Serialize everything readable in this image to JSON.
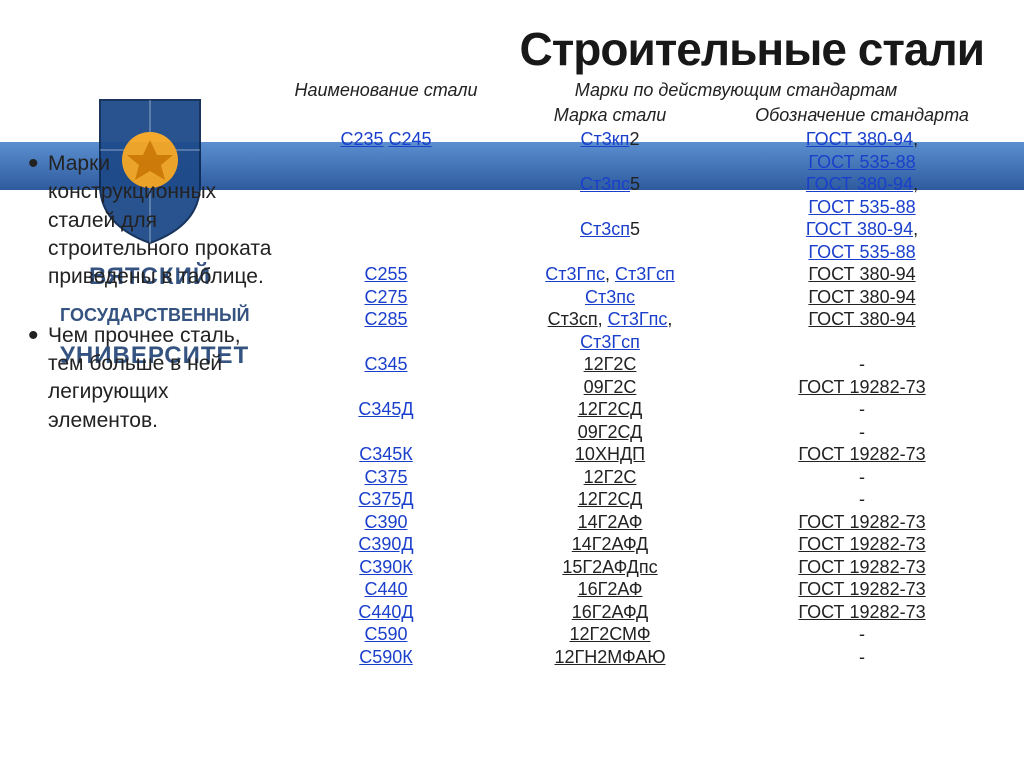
{
  "colors": {
    "link": "#1a3fcc",
    "text": "#222222",
    "bar_top": "#5a8fd0",
    "bar_bottom": "#2f5b9e",
    "background": "#ffffff",
    "univ_text": "#2a4a7a"
  },
  "title": "Строительные стали",
  "bullets": [
    "Марки конструкционных сталей для строительного проката приведены в таблице.",
    "Чем прочнее сталь, тем больше в ней легирующих элементов."
  ],
  "logo": {
    "line1": "ВЯТСКИЙ",
    "line2": "ГОСУДАРСТВЕННЫЙ",
    "line3": "УНИВЕРСИТЕТ"
  },
  "table": {
    "header": {
      "col1": "Наименование стали",
      "col2_group": "Марки по действующим стандартам",
      "col2a": "Марка стали",
      "col2b": "Обозначение стандарта"
    },
    "rows": [
      {
        "name_links": [
          "С235",
          "С245"
        ],
        "grade_html": "<span class='u'>Ст3кп</span>2",
        "std_html": "<span class='u'>ГОСТ 380-94</span>,<br><span class='u'>ГОСТ 535-88</span>"
      },
      {
        "name_links": [],
        "grade_html": "<span class='u'>Ст3пс</span>5",
        "std_html": "<span class='u'>ГОСТ 380-94</span>,<br><span class='u'>ГОСТ 535-88</span>"
      },
      {
        "name_links": [],
        "grade_html": "<span class='u'>Ст3сп</span>5",
        "std_html": "<span class='u'>ГОСТ 380-94</span>,<br><span class='u'>ГОСТ 535-88</span>"
      },
      {
        "name_links": [
          "С255"
        ],
        "grade_html": "<span class='u'>Ст3Гпс</span>, <span class='u'>Ст3Гсп</span>",
        "std_html": "<span class='plain-u'>ГОСТ 380-94</span>"
      },
      {
        "name_links": [
          "С275"
        ],
        "grade_html": "<span class='u'>Ст3пс</span>",
        "std_html": "<span class='plain-u'>ГОСТ 380-94</span>"
      },
      {
        "name_links": [
          "С285"
        ],
        "grade_html": "<span class='plain-u'>Ст3сп</span>, <span class='u'>Ст3Гпс</span>,<br><span class='u'>Ст3Гсп</span>",
        "std_html": "<span class='plain-u'>ГОСТ 380-94</span>"
      },
      {
        "name_links": [
          "С345"
        ],
        "grade_html": "<span class='plain-u'>12Г2С</span><br><span class='plain-u'>09Г2С</span>",
        "std_html": "-<br><span class='plain-u'>ГОСТ 19282-73</span>"
      },
      {
        "name_links": [
          "С345Д"
        ],
        "grade_html": "<span class='plain-u'>12Г2СД</span><br><span class='plain-u'>09Г2СД</span>",
        "std_html": "-<br>-"
      },
      {
        "name_links": [
          "С345К"
        ],
        "grade_html": "<span class='plain-u'>10ХНДП</span>",
        "std_html": "<span class='plain-u'>ГОСТ 19282-73</span>"
      },
      {
        "name_links": [
          "С375"
        ],
        "grade_html": "<span class='plain-u'>12Г2С</span>",
        "std_html": "-"
      },
      {
        "name_links": [
          "С375Д"
        ],
        "grade_html": "<span class='plain-u'>12Г2СД</span>",
        "std_html": "-"
      },
      {
        "name_links": [
          "С390"
        ],
        "grade_html": "<span class='plain-u'>14Г2АФ</span>",
        "std_html": "<span class='plain-u'>ГОСТ 19282-73</span>"
      },
      {
        "name_links": [
          "С390Д"
        ],
        "grade_html": "<span class='plain-u'>14Г2АФД</span>",
        "std_html": "<span class='plain-u'>ГОСТ 19282-73</span>"
      },
      {
        "name_links": [
          "С390К"
        ],
        "grade_html": "<span class='plain-u'>15Г2АФДпс</span>",
        "std_html": "<span class='plain-u'>ГОСТ 19282-73</span>"
      },
      {
        "name_links": [
          "С440"
        ],
        "grade_html": "<span class='plain-u'>16Г2АФ</span>",
        "std_html": "<span class='plain-u'>ГОСТ 19282-73</span>"
      },
      {
        "name_links": [
          "С440Д"
        ],
        "grade_html": "<span class='plain-u'>16Г2АФД</span>",
        "std_html": "<span class='plain-u'>ГОСТ 19282-73</span>"
      },
      {
        "name_links": [
          "С590"
        ],
        "grade_html": "<span class='plain-u'>12Г2СМФ</span>",
        "std_html": "-"
      },
      {
        "name_links": [
          "С590К"
        ],
        "grade_html": "<span class='plain-u'>12ГН2МФАЮ</span>",
        "std_html": "-"
      }
    ]
  }
}
